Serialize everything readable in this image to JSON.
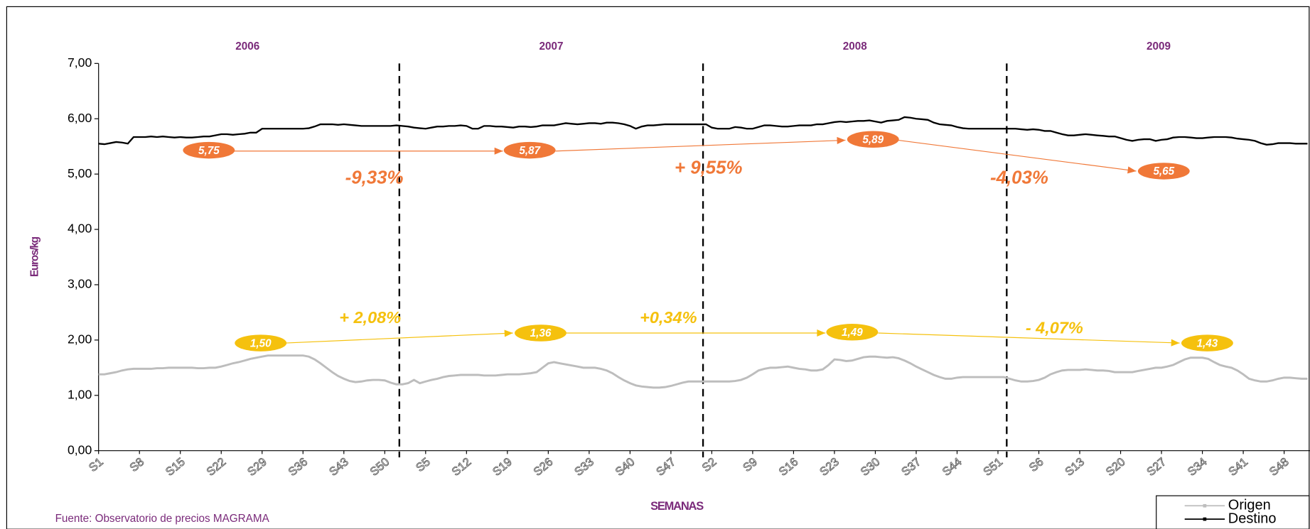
{
  "chart_data": {
    "type": "line",
    "y_label": "Euros/kg",
    "x_label": "SEMANAS",
    "source": "Fuente: Observatorio de precios MAGRAMA",
    "years": [
      "2006",
      "2007",
      "2008",
      "2009"
    ],
    "categories": [
      "S1",
      null,
      null,
      null,
      null,
      null,
      null,
      "S8",
      null,
      null,
      null,
      null,
      null,
      null,
      "S15",
      null,
      null,
      null,
      null,
      null,
      null,
      "S22",
      null,
      null,
      null,
      null,
      null,
      null,
      "S29",
      null,
      null,
      null,
      null,
      null,
      null,
      "S36",
      null,
      null,
      null,
      null,
      null,
      null,
      "S43",
      null,
      null,
      null,
      null,
      null,
      null,
      "S50",
      null,
      null,
      null,
      null,
      null,
      null,
      "S5",
      null,
      null,
      null,
      null,
      null,
      null,
      "S12",
      null,
      null,
      null,
      null,
      null,
      null,
      "S19",
      null,
      null,
      null,
      null,
      null,
      null,
      "S26",
      null,
      null,
      null,
      null,
      null,
      null,
      "S33",
      null,
      null,
      null,
      null,
      null,
      null,
      "S40",
      null,
      null,
      null,
      null,
      null,
      null,
      "S47",
      null,
      null,
      null,
      null,
      null,
      null,
      "S2",
      null,
      null,
      null,
      null,
      null,
      null,
      "S9",
      null,
      null,
      null,
      null,
      null,
      null,
      "S16",
      null,
      null,
      null,
      null,
      null,
      null,
      "S23",
      null,
      null,
      null,
      null,
      null,
      null,
      "S30",
      null,
      null,
      null,
      null,
      null,
      null,
      "S37",
      null,
      null,
      null,
      null,
      null,
      null,
      "S44",
      null,
      null,
      null,
      null,
      null,
      null,
      "S51",
      null,
      null,
      null,
      null,
      null,
      null,
      "S6",
      null,
      null,
      null,
      null,
      null,
      null,
      "S13",
      null,
      null,
      null,
      null,
      null,
      null,
      "S20",
      null,
      null,
      null,
      null,
      null,
      null,
      "S27",
      null,
      null,
      null,
      null,
      null,
      null,
      "S34",
      null,
      null,
      null,
      null,
      null,
      null,
      "S41",
      null,
      null,
      null,
      null,
      null,
      null,
      "S48",
      null,
      null,
      null,
      null
    ],
    "series": [
      {
        "name": "Origen",
        "color": "#bdbdbd",
        "values": [
          1.38,
          1.38,
          1.4,
          1.42,
          1.45,
          1.47,
          1.48,
          1.48,
          1.48,
          1.48,
          1.49,
          1.49,
          1.5,
          1.5,
          1.5,
          1.5,
          1.5,
          1.49,
          1.49,
          1.5,
          1.5,
          1.52,
          1.55,
          1.58,
          1.6,
          1.63,
          1.66,
          1.68,
          1.7,
          1.72,
          1.72,
          1.72,
          1.72,
          1.72,
          1.72,
          1.72,
          1.7,
          1.65,
          1.58,
          1.5,
          1.42,
          1.35,
          1.3,
          1.26,
          1.24,
          1.25,
          1.27,
          1.28,
          1.28,
          1.27,
          1.23,
          1.2,
          1.2,
          1.22,
          1.28,
          1.22,
          1.25,
          1.28,
          1.3,
          1.33,
          1.35,
          1.36,
          1.37,
          1.37,
          1.37,
          1.37,
          1.36,
          1.36,
          1.36,
          1.37,
          1.38,
          1.38,
          1.38,
          1.39,
          1.4,
          1.42,
          1.5,
          1.58,
          1.6,
          1.58,
          1.56,
          1.54,
          1.52,
          1.5,
          1.5,
          1.5,
          1.48,
          1.45,
          1.4,
          1.33,
          1.27,
          1.22,
          1.18,
          1.16,
          1.15,
          1.14,
          1.14,
          1.15,
          1.17,
          1.2,
          1.23,
          1.25,
          1.25,
          1.25,
          1.25,
          1.25,
          1.25,
          1.25,
          1.25,
          1.26,
          1.28,
          1.32,
          1.38,
          1.45,
          1.48,
          1.5,
          1.5,
          1.51,
          1.52,
          1.5,
          1.48,
          1.47,
          1.45,
          1.45,
          1.47,
          1.55,
          1.65,
          1.64,
          1.62,
          1.63,
          1.66,
          1.69,
          1.7,
          1.7,
          1.69,
          1.68,
          1.69,
          1.67,
          1.63,
          1.58,
          1.52,
          1.47,
          1.42,
          1.37,
          1.33,
          1.3,
          1.3,
          1.32,
          1.33,
          1.33,
          1.33,
          1.33,
          1.33,
          1.33,
          1.33,
          1.33,
          1.3,
          1.27,
          1.25,
          1.25,
          1.26,
          1.28,
          1.32,
          1.38,
          1.42,
          1.45,
          1.46,
          1.46,
          1.46,
          1.47,
          1.46,
          1.45,
          1.45,
          1.44,
          1.42,
          1.42,
          1.42,
          1.42,
          1.44,
          1.46,
          1.48,
          1.5,
          1.5,
          1.52,
          1.55,
          1.6,
          1.65,
          1.68,
          1.68,
          1.68,
          1.66,
          1.6,
          1.55,
          1.52,
          1.5,
          1.45,
          1.38,
          1.3,
          1.27,
          1.25,
          1.25,
          1.27,
          1.3,
          1.32,
          1.32,
          1.31,
          1.3,
          1.3
        ]
      },
      {
        "name": "Destino",
        "color": "#000000",
        "values": [
          5.55,
          5.54,
          5.56,
          5.58,
          5.57,
          5.55,
          5.67,
          5.67,
          5.67,
          5.68,
          5.67,
          5.68,
          5.67,
          5.66,
          5.67,
          5.66,
          5.66,
          5.67,
          5.68,
          5.68,
          5.7,
          5.72,
          5.72,
          5.71,
          5.72,
          5.73,
          5.75,
          5.75,
          5.82,
          5.82,
          5.82,
          5.82,
          5.82,
          5.82,
          5.82,
          5.82,
          5.83,
          5.86,
          5.9,
          5.9,
          5.9,
          5.89,
          5.9,
          5.89,
          5.88,
          5.87,
          5.87,
          5.87,
          5.87,
          5.87,
          5.87,
          5.88,
          5.87,
          5.86,
          5.84,
          5.83,
          5.82,
          5.84,
          5.86,
          5.86,
          5.87,
          5.87,
          5.88,
          5.87,
          5.82,
          5.82,
          5.87,
          5.87,
          5.86,
          5.86,
          5.85,
          5.84,
          5.86,
          5.86,
          5.85,
          5.86,
          5.88,
          5.88,
          5.88,
          5.9,
          5.92,
          5.91,
          5.9,
          5.91,
          5.92,
          5.92,
          5.91,
          5.93,
          5.93,
          5.92,
          5.9,
          5.87,
          5.82,
          5.86,
          5.88,
          5.88,
          5.89,
          5.9,
          5.9,
          5.9,
          5.9,
          5.9,
          5.9,
          5.9,
          5.9,
          5.84,
          5.82,
          5.82,
          5.82,
          5.85,
          5.84,
          5.82,
          5.82,
          5.85,
          5.88,
          5.88,
          5.87,
          5.86,
          5.86,
          5.87,
          5.88,
          5.88,
          5.88,
          5.9,
          5.9,
          5.92,
          5.94,
          5.95,
          5.94,
          5.95,
          5.96,
          5.96,
          5.97,
          5.95,
          5.93,
          5.96,
          5.97,
          5.98,
          6.03,
          6.02,
          6.0,
          5.99,
          5.98,
          5.93,
          5.9,
          5.89,
          5.88,
          5.85,
          5.83,
          5.82,
          5.82,
          5.82,
          5.82,
          5.82,
          5.82,
          5.82,
          5.82,
          5.82,
          5.81,
          5.8,
          5.81,
          5.8,
          5.78,
          5.78,
          5.75,
          5.72,
          5.7,
          5.7,
          5.71,
          5.72,
          5.71,
          5.7,
          5.69,
          5.68,
          5.68,
          5.65,
          5.62,
          5.6,
          5.62,
          5.63,
          5.63,
          5.6,
          5.62,
          5.63,
          5.66,
          5.67,
          5.67,
          5.66,
          5.65,
          5.65,
          5.66,
          5.67,
          5.67,
          5.67,
          5.66,
          5.64,
          5.63,
          5.62,
          5.6,
          5.56,
          5.53,
          5.54,
          5.56,
          5.56,
          5.56,
          5.55,
          5.55,
          5.55
        ]
      }
    ],
    "ylim": [
      0,
      7
    ],
    "yticks": [
      {
        "value": 0,
        "label": "0,00"
      },
      {
        "value": 1,
        "label": "1,00"
      },
      {
        "value": 2,
        "label": "2,00"
      },
      {
        "value": 3,
        "label": "3,00"
      },
      {
        "value": 4,
        "label": "4,00"
      },
      {
        "value": 5,
        "label": "5,00"
      },
      {
        "value": 6,
        "label": "6,00"
      },
      {
        "value": 7,
        "label": "7,00"
      }
    ],
    "destino_labels": [
      "5,75",
      "5,87",
      "5,89",
      "5,65"
    ],
    "destino_changes": [
      "-9,33%",
      "+ 9,55%",
      "-4,03%"
    ],
    "origen_labels": [
      "1,50",
      "1,36",
      "1,49",
      "1,43"
    ],
    "origen_changes": [
      "+ 2,08%",
      "+0,34%",
      "- 4,07%"
    ]
  }
}
